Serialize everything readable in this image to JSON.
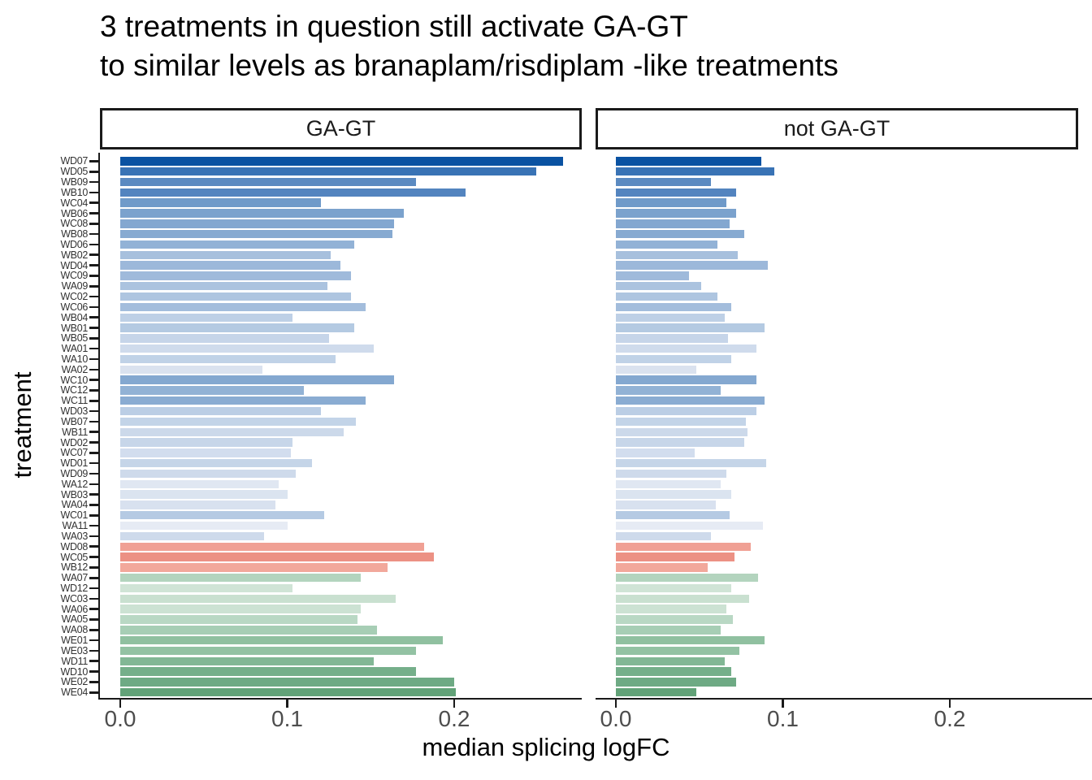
{
  "title": {
    "line1": "3 treatments in question still activate GA-GT",
    "line2": "to similar levels as branaplam/risdiplam -like treatments"
  },
  "facet_labels": {
    "left": "GA-GT",
    "right": "not GA-GT"
  },
  "x_axis_title": "median splicing logFC",
  "y_axis_title": "treatment",
  "x_tick_labels": [
    "0.0",
    "0.1",
    "0.2"
  ],
  "chart_data": {
    "type": "bar",
    "orientation": "horizontal",
    "title": "3 treatments in question still activate GA-GT to similar levels as branaplam/risdiplam -like treatments",
    "xlabel": "median splicing logFC",
    "ylabel": "treatment",
    "facets": [
      "GA-GT",
      "not GA-GT"
    ],
    "legend_position": "none",
    "grid": false,
    "xlim": [
      0,
      0.28
    ],
    "x_ticks": [
      0.0,
      0.1,
      0.2
    ],
    "categories": [
      "WD07",
      "WD05",
      "WB09",
      "WB10",
      "WC04",
      "WB06",
      "WC08",
      "WB08",
      "WD06",
      "WB02",
      "WD04",
      "WC09",
      "WA09",
      "WC02",
      "WC06",
      "WB04",
      "WB01",
      "WB05",
      "WA01",
      "WA10",
      "WA02",
      "WC10",
      "WC12",
      "WC11",
      "WD03",
      "WB07",
      "WB11",
      "WD02",
      "WC07",
      "WD01",
      "WD09",
      "WA12",
      "WB03",
      "WA04",
      "WC01",
      "WA11",
      "WA03",
      "WD08",
      "WC05",
      "WB12",
      "WA07",
      "WD12",
      "WC03",
      "WA06",
      "WA05",
      "WA08",
      "WE01",
      "WE03",
      "WD11",
      "WD10",
      "WE02",
      "WE04"
    ],
    "series": [
      {
        "name": "GA-GT",
        "values": [
          0.265,
          0.249,
          0.177,
          0.207,
          0.12,
          0.17,
          0.164,
          0.163,
          0.14,
          0.126,
          0.132,
          0.138,
          0.124,
          0.138,
          0.147,
          0.103,
          0.14,
          0.125,
          0.152,
          0.129,
          0.085,
          0.164,
          0.11,
          0.147,
          0.12,
          0.141,
          0.134,
          0.103,
          0.102,
          0.115,
          0.105,
          0.095,
          0.1,
          0.093,
          0.122,
          0.1,
          0.086,
          0.182,
          0.188,
          0.16,
          0.144,
          0.103,
          0.165,
          0.144,
          0.142,
          0.154,
          0.193,
          0.177,
          0.152,
          0.177,
          0.2,
          0.201
        ]
      },
      {
        "name": "not GA-GT",
        "values": [
          0.087,
          0.095,
          0.057,
          0.072,
          0.066,
          0.072,
          0.068,
          0.077,
          0.061,
          0.073,
          0.091,
          0.044,
          0.051,
          0.061,
          0.069,
          0.065,
          0.089,
          0.067,
          0.084,
          0.069,
          0.048,
          0.084,
          0.063,
          0.089,
          0.084,
          0.078,
          0.079,
          0.077,
          0.047,
          0.09,
          0.066,
          0.063,
          0.069,
          0.06,
          0.068,
          0.088,
          0.057,
          0.081,
          0.071,
          0.055,
          0.085,
          0.069,
          0.08,
          0.066,
          0.07,
          0.063,
          0.089,
          0.074,
          0.065,
          0.069,
          0.072,
          0.048
        ]
      }
    ],
    "bar_colors": [
      "#0a52a2",
      "#3973b5",
      "#5b8ac1",
      "#5384bf",
      "#6f9ac9",
      "#7ba2cd",
      "#83a7d0",
      "#87aad1",
      "#92b2d6",
      "#a7c0dd",
      "#9cb8da",
      "#9fbadb",
      "#abc3df",
      "#aec5e0",
      "#a3bddc",
      "#bed0e6",
      "#b4cae2",
      "#c6d5e9",
      "#cfdbec",
      "#c0d2e7",
      "#dae2ef",
      "#84a8d0",
      "#92b2d5",
      "#8aacd2",
      "#bbcee5",
      "#c3d4e8",
      "#ccd9ea",
      "#c7d6e9",
      "#d2ddee",
      "#c5d5e8",
      "#cedaeb",
      "#e0e7f2",
      "#dbe4f0",
      "#d8e1ef",
      "#b5cae3",
      "#e6ebf4",
      "#cedaeb",
      "#f0a094",
      "#ec9184",
      "#f2a89b",
      "#b3d4be",
      "#d0e4d6",
      "#c9e0d0",
      "#cce2d3",
      "#b9d8c4",
      "#a7ceb5",
      "#90c0a0",
      "#93c2a3",
      "#82b795",
      "#75af8a",
      "#6eaa84",
      "#62a278"
    ],
    "color_groups": {
      "blue": "branaplam/risdiplam -like treatments (gradient dark to light)",
      "salmon": "3 treatments in question (WD08, WC05, WB12)",
      "green": "treatments gradient light to dark (WA07 through WE04)"
    }
  }
}
